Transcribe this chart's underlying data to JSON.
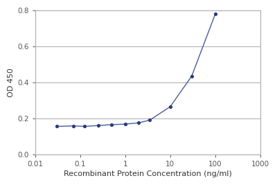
{
  "x": [
    0.03,
    0.07,
    0.125,
    0.25,
    0.5,
    1.0,
    2.0,
    3.5,
    10.0,
    30.0,
    100.0
  ],
  "y": [
    0.155,
    0.158,
    0.155,
    0.16,
    0.165,
    0.168,
    0.175,
    0.19,
    0.265,
    0.435,
    0.78
  ],
  "line_color": "#4a5a9a",
  "marker_color": "#2a3a7a",
  "xlabel": "Recombinant Protein Concentration (ng/ml)",
  "ylabel": "OD 450",
  "xlim": [
    0.01,
    1000
  ],
  "ylim": [
    0,
    0.8
  ],
  "yticks": [
    0,
    0.2,
    0.4,
    0.6,
    0.8
  ],
  "xtick_labels": [
    "0.01",
    "0.1",
    "1",
    "10",
    "100",
    "1000"
  ],
  "xtick_positions": [
    0.01,
    0.1,
    1,
    10,
    100,
    1000
  ],
  "background_color": "#ffffff",
  "plot_bg_color": "#ffffff",
  "grid_color": "#aaaaaa",
  "spine_color": "#aaaaaa",
  "xlabel_fontsize": 8,
  "ylabel_fontsize": 8,
  "tick_fontsize": 7.5,
  "marker_size": 14
}
